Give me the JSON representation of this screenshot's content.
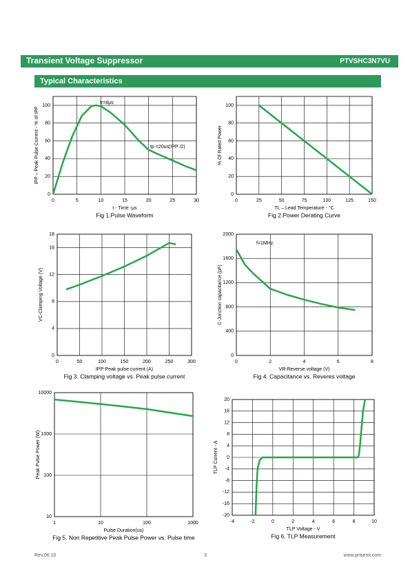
{
  "header": {
    "title": "Transient Voltage Suppressor",
    "part": "PTVSHC3N7VU",
    "section": "Typical Characteristics"
  },
  "footer": {
    "rev": "Rev.06.10",
    "page": "3",
    "site": "www.prisemi.com"
  },
  "chart_data": [
    {
      "type": "line",
      "title": "Fig 1.Pulse Waveform",
      "xlabel": "t - Time -μs",
      "ylabel": "IPP – Peak Pulse Current - % of IPP",
      "x": [
        0,
        2,
        4,
        6,
        8,
        9,
        10,
        12,
        15,
        18,
        20,
        22,
        25,
        28,
        30
      ],
      "values": [
        0,
        35,
        65,
        88,
        99,
        100,
        99,
        92,
        78,
        60,
        50,
        45,
        38,
        31,
        27
      ],
      "color": "#22a845",
      "xlim": [
        0,
        30
      ],
      "xticks": [
        0,
        5,
        10,
        15,
        20,
        25,
        30
      ],
      "ylim": [
        0,
        110
      ],
      "yticks": [
        0,
        20,
        40,
        60,
        80,
        100
      ],
      "grid": true,
      "annotations": [
        "tr=8μs",
        "tp =20us(IPP /2)"
      ]
    },
    {
      "type": "line",
      "title": "Fig 2.Power Derating Curve",
      "xlabel": "TL – Lead Temperature - °C",
      "ylabel": "% Of Rated Power",
      "x": [
        25,
        150
      ],
      "values": [
        100,
        0
      ],
      "color": "#22a845",
      "xlim": [
        0,
        150
      ],
      "xticks": [
        0,
        25,
        50,
        75,
        100,
        125,
        150
      ],
      "ylim": [
        0,
        110
      ],
      "yticks": [
        0,
        20,
        40,
        60,
        80,
        100
      ],
      "grid": true,
      "annotations": []
    },
    {
      "type": "line",
      "title": "Fig 3. Clamping voltage vs. Peak pulse current",
      "xlabel": "IPP-Peak pulse current (A)",
      "ylabel": "VC-Clamping Voltage (V)",
      "x": [
        20,
        50,
        100,
        150,
        200,
        250,
        265
      ],
      "values": [
        9.8,
        10.5,
        11.8,
        13.2,
        14.8,
        16.7,
        16.5
      ],
      "color": "#22a845",
      "xlim": [
        0,
        300
      ],
      "xticks": [
        0,
        50,
        100,
        150,
        200,
        250,
        300
      ],
      "ylim": [
        0,
        18
      ],
      "yticks": [
        0,
        4,
        8,
        12,
        16,
        18
      ],
      "grid": true,
      "annotations": []
    },
    {
      "type": "line",
      "title": "Fig 4. Capacitance vs. Reveres voltage",
      "xlabel": "VR-Reverse voltage (V)",
      "ylabel": "C-Junction capacitance (pF)",
      "x": [
        0,
        0.5,
        1,
        2,
        3,
        4,
        5,
        6,
        7
      ],
      "values": [
        1750,
        1500,
        1350,
        1100,
        1000,
        920,
        850,
        790,
        750
      ],
      "color": "#22a845",
      "xlim": [
        0,
        8
      ],
      "xticks": [
        0,
        2,
        4,
        6,
        8
      ],
      "ylim": [
        0,
        2000
      ],
      "yticks": [
        0,
        400,
        800,
        1200,
        1600,
        2000
      ],
      "grid": true,
      "annotations": [
        "f=1MHz"
      ]
    },
    {
      "type": "line",
      "title": "Fig 5. Non Repetitive Peak Pulse Power vs. Pulse time",
      "xlabel": "Pulse Duration(us)",
      "ylabel": "Peak Pulse Power (W)",
      "x": [
        1,
        10,
        100,
        1000
      ],
      "values": [
        6800,
        5300,
        4000,
        2700
      ],
      "color": "#22a845",
      "xscale": "log",
      "yscale": "log",
      "xlim": [
        1,
        1000
      ],
      "xticks": [
        1,
        10,
        100,
        1000
      ],
      "ylim": [
        10,
        10000
      ],
      "yticks": [
        10,
        100,
        1000,
        10000
      ],
      "grid": true,
      "annotations": []
    },
    {
      "type": "line",
      "title": "Fig 6. TLP Measurement",
      "xlabel": "TLP Voltage - V",
      "ylabel": "TLP Current - A",
      "x": [
        -1.7,
        -1.6,
        -1.5,
        -1.3,
        -1,
        8.4,
        8.5,
        8.6,
        8.9,
        9.1
      ],
      "values": [
        -20,
        -10,
        -4,
        -1,
        0,
        0,
        1,
        4,
        16,
        20
      ],
      "color": "#22a845",
      "xlim": [
        -4,
        10
      ],
      "xticks": [
        -4,
        -2,
        0,
        2,
        4,
        6,
        8,
        10
      ],
      "ylim": [
        -20,
        20
      ],
      "yticks": [
        -20,
        -16,
        -12,
        -8,
        -4,
        0,
        4,
        8,
        12,
        16,
        20
      ],
      "grid": true,
      "annotations": []
    }
  ]
}
